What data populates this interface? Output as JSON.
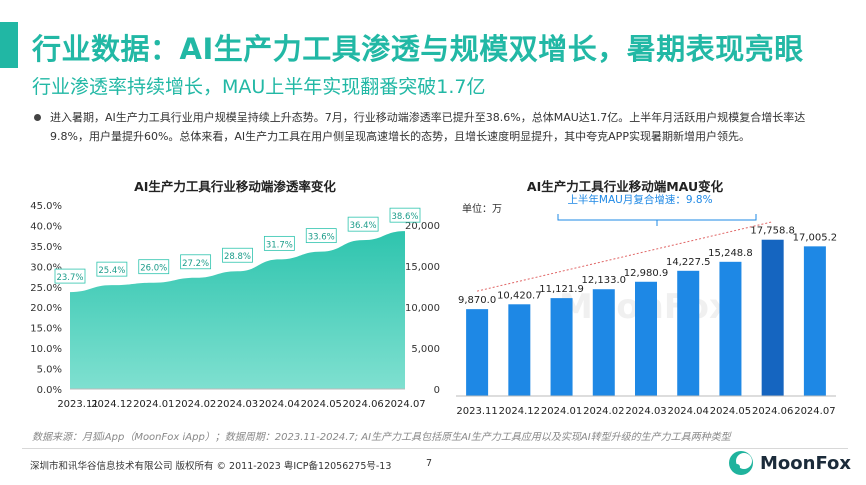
{
  "title": "行业数据：AI生产力工具渗透与规模双增长，暑期表现亮眼",
  "subtitle": "行业渗透率持续增长，MAU上半年实现翻番突破1.7亿",
  "bullet": "进入暑期，AI生产力工具行业用户规模呈持续上升态势。7月，行业移动端渗透率已提升至38.6%，总体MAU达1.7亿。上半年月活跃用户规模复合增长率达9.8%，用户量提升60%。总体来看，AI生产力工具在用户侧呈现高速增长的态势，且增长速度明显提升，其中夸克APP实现暑期新增用户领先。",
  "watermark": "MoonFox",
  "chart_data": [
    {
      "type": "area",
      "title": "AI生产力工具行业移动端渗透率变化",
      "categories": [
        "2023.11",
        "2024.12",
        "2024.01",
        "2024.02",
        "2024.03",
        "2024.04",
        "2024.05",
        "2024.06",
        "2024.07"
      ],
      "values": [
        23.7,
        25.4,
        26.0,
        27.2,
        28.8,
        31.7,
        33.6,
        36.4,
        38.6
      ],
      "data_labels": [
        "23.7%",
        "25.4%",
        "26.0%",
        "27.2%",
        "28.8%",
        "31.7%",
        "33.6%",
        "36.4%",
        "38.6%"
      ],
      "left_ticks": [
        "45.0%",
        "40.0%",
        "35.0%",
        "30.0%",
        "25.0%",
        "20.0%",
        "15.0%",
        "10.0%",
        "5.0%",
        "0.0%"
      ],
      "right_ticks": [
        "20,000",
        "15,000",
        "10,000",
        "5,000",
        "0"
      ],
      "ylim": [
        0,
        45
      ],
      "color": "#3cc9b4"
    },
    {
      "type": "bar",
      "title": "AI生产力工具行业移动端MAU变化",
      "unit": "单位：万",
      "annotation": "上半年MAU月复合增速：9.8%",
      "categories": [
        "2023.11",
        "2024.12",
        "2024.01",
        "2024.02",
        "2024.03",
        "2024.04",
        "2024.05",
        "2024.06",
        "2024.07"
      ],
      "values": [
        9870.0,
        10420.7,
        11121.9,
        12133.0,
        12980.9,
        14227.5,
        15248.8,
        17758.8,
        17005.2
      ],
      "data_labels": [
        "9,870.0",
        "10,420.7",
        "11,121.9",
        "12,133.0",
        "12,980.9",
        "14,227.5",
        "15,248.8",
        "17,758.8",
        "17,005.2"
      ],
      "color": "#1e88e5",
      "highlight_color": "#1565c0"
    }
  ],
  "source_note": "数据来源：月狐iApp（MoonFox iApp）；数据周期：2023.11-2024.7;   AI生产力工具包括原生AI生产力工具应用以及实现AI转型升级的生产力工具两种类型",
  "copyright": "深圳市和讯华谷信息技术有限公司 版权所有 © 2011-2023 粤ICP备12056275号-13",
  "page_number": "7",
  "logo": "MoonFox",
  "colors": {
    "accent": "#22b8a5",
    "bar": "#1e88e5"
  }
}
